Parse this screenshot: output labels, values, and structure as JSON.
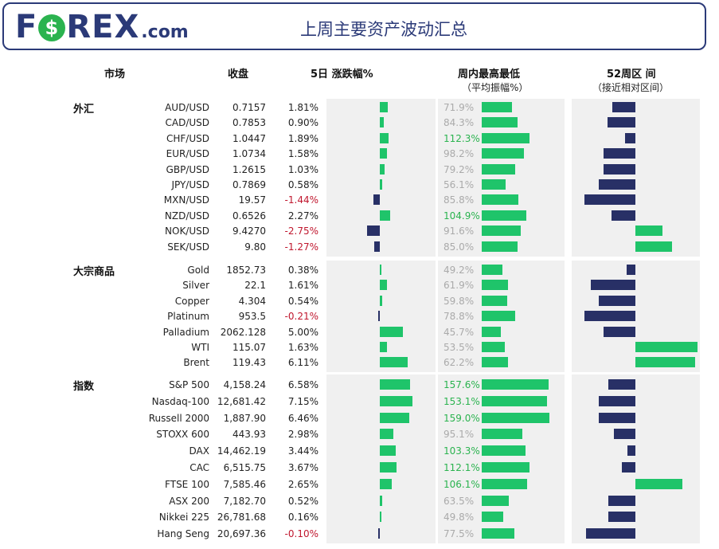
{
  "header": {
    "logo": {
      "brand_letters": [
        "F",
        "REX"
      ],
      "o_glyph": "$",
      "suffix": ".com"
    },
    "title": "上周主要资产波动汇总"
  },
  "columns": {
    "market": "市场",
    "close": "收盘",
    "change_5d": "5日 涨跌幅%",
    "weekly_range": "周内最高最低",
    "weekly_range_sub": "（平均振幅%）",
    "week52": "52周区 间",
    "week52_sub": "（接近相对区间）"
  },
  "colors": {
    "positive": "#1fc46a",
    "negative": "#c0172e",
    "range_bar": "#1fc46a",
    "low_bar": "#283066",
    "panel": "#f0f0f0",
    "brand": "#2b3a78"
  },
  "chart_data": {
    "type": "table",
    "groups": [
      {
        "label": "外汇",
        "rows": [
          {
            "name": "AUD/USD",
            "close": "0.7157",
            "change": "1.81%",
            "change_value": 1.81,
            "range": "71.9%",
            "range_value": 71.9,
            "w52": 0.36
          },
          {
            "name": "CAD/USD",
            "close": "0.7853",
            "change": "0.90%",
            "change_value": 0.9,
            "range": "84.3%",
            "range_value": 84.3,
            "w52": 0.44
          },
          {
            "name": "CHF/USD",
            "close": "1.0447",
            "change": "1.89%",
            "change_value": 1.89,
            "range": "112.3%",
            "range_value": 112.3,
            "w52": 0.16
          },
          {
            "name": "EUR/USD",
            "close": "1.0734",
            "change": "1.58%",
            "change_value": 1.58,
            "range": "98.2%",
            "range_value": 98.2,
            "w52": 0.5
          },
          {
            "name": "GBP/USD",
            "close": "1.2615",
            "change": "1.03%",
            "change_value": 1.03,
            "range": "79.2%",
            "range_value": 79.2,
            "w52": 0.5
          },
          {
            "name": "JPY/USD",
            "close": "0.7869",
            "change": "0.58%",
            "change_value": 0.58,
            "range": "56.1%",
            "range_value": 56.1,
            "w52": 0.58
          },
          {
            "name": "MXN/USD",
            "close": "19.57",
            "change": "-1.44%",
            "change_value": -1.44,
            "range": "85.8%",
            "range_value": 85.8,
            "w52": 0.8
          },
          {
            "name": "NZD/USD",
            "close": "0.6526",
            "change": "2.27%",
            "change_value": 2.27,
            "range": "104.9%",
            "range_value": 104.9,
            "w52": 0.37
          },
          {
            "name": "NOK/USD",
            "close": "9.4270",
            "change": "-2.75%",
            "change_value": -2.75,
            "range": "91.6%",
            "range_value": 91.6,
            "w52": -0.43
          },
          {
            "name": "SEK/USD",
            "close": "9.80",
            "change": "-1.27%",
            "change_value": -1.27,
            "range": "85.0%",
            "range_value": 85.0,
            "w52": -0.57
          }
        ]
      },
      {
        "label": "大宗商品",
        "rows": [
          {
            "name": "Gold",
            "close": "1852.73",
            "change": "0.38%",
            "change_value": 0.38,
            "range": "49.2%",
            "range_value": 49.2,
            "w52": 0.14
          },
          {
            "name": "Silver",
            "close": "22.1",
            "change": "1.61%",
            "change_value": 1.61,
            "range": "61.9%",
            "range_value": 61.9,
            "w52": 0.7
          },
          {
            "name": "Copper",
            "close": "4.304",
            "change": "0.54%",
            "change_value": 0.54,
            "range": "59.8%",
            "range_value": 59.8,
            "w52": 0.57
          },
          {
            "name": "Platinum",
            "close": "953.5",
            "change": "-0.21%",
            "change_value": -0.21,
            "range": "78.8%",
            "range_value": 78.8,
            "w52": 0.8
          },
          {
            "name": "Palladium",
            "close": "2062.128",
            "change": "5.00%",
            "change_value": 5.0,
            "range": "45.7%",
            "range_value": 45.7,
            "w52": 0.5
          },
          {
            "name": "WTI",
            "close": "115.07",
            "change": "1.63%",
            "change_value": 1.63,
            "range": "53.5%",
            "range_value": 53.5,
            "w52": -0.98
          },
          {
            "name": "Brent",
            "close": "119.43",
            "change": "6.11%",
            "change_value": 6.11,
            "range": "62.2%",
            "range_value": 62.2,
            "w52": -0.94
          }
        ]
      },
      {
        "label": "指数",
        "rows": [
          {
            "name": "S&P 500",
            "close": "4,158.24",
            "change": "6.58%",
            "change_value": 6.58,
            "range": "157.6%",
            "range_value": 157.6,
            "w52": 0.42
          },
          {
            "name": "Nasdaq-100",
            "close": "12,681.42",
            "change": "7.15%",
            "change_value": 7.15,
            "range": "153.1%",
            "range_value": 153.1,
            "w52": 0.57
          },
          {
            "name": "Russell 2000",
            "close": "1,887.90",
            "change": "6.46%",
            "change_value": 6.46,
            "range": "159.0%",
            "range_value": 159.0,
            "w52": 0.57
          },
          {
            "name": "STOXX 600",
            "close": "443.93",
            "change": "2.98%",
            "change_value": 2.98,
            "range": "95.1%",
            "range_value": 95.1,
            "w52": 0.34
          },
          {
            "name": "DAX",
            "close": "14,462.19",
            "change": "3.44%",
            "change_value": 3.44,
            "range": "103.3%",
            "range_value": 103.3,
            "w52": 0.12
          },
          {
            "name": "CAC",
            "close": "6,515.75",
            "change": "3.67%",
            "change_value": 3.67,
            "range": "112.1%",
            "range_value": 112.1,
            "w52": 0.21
          },
          {
            "name": "FTSE 100",
            "close": "7,585.46",
            "change": "2.65%",
            "change_value": 2.65,
            "range": "106.1%",
            "range_value": 106.1,
            "w52": -0.74
          },
          {
            "name": "ASX 200",
            "close": "7,182.70",
            "change": "0.52%",
            "change_value": 0.52,
            "range": "63.5%",
            "range_value": 63.5,
            "w52": 0.42
          },
          {
            "name": "Nikkei 225",
            "close": "26,781.68",
            "change": "0.16%",
            "change_value": 0.16,
            "range": "49.8%",
            "range_value": 49.8,
            "w52": 0.42
          },
          {
            "name": "Hang Seng",
            "close": "20,697.36",
            "change": "-0.10%",
            "change_value": -0.1,
            "range": "77.5%",
            "range_value": 77.5,
            "w52": 0.78
          }
        ]
      }
    ]
  }
}
